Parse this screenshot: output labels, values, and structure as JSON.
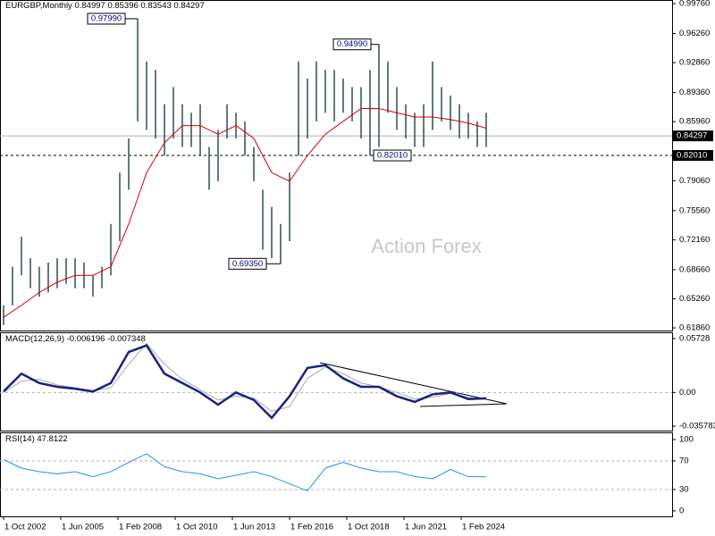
{
  "chart_data": [
    {
      "type": "hilo",
      "title": "EURGBP,Monthly",
      "header_values": [
        0.84997,
        0.85396,
        0.83543,
        0.84297
      ],
      "watermark": "Action Forex",
      "color": "#2f4f4f",
      "xlim": [
        -2,
        374
      ],
      "ylim": [
        0.6155,
        1.0018
      ],
      "yticks": [
        {
          "value": 0.9976,
          "label": "0.99760"
        },
        {
          "value": 0.9626,
          "label": "0.96260"
        },
        {
          "value": 0.9286,
          "label": "0.92860"
        },
        {
          "value": 0.8936,
          "label": "0.89360"
        },
        {
          "value": 0.8596,
          "label": "0.85960"
        },
        {
          "value": 0.7906,
          "label": "0.79060"
        },
        {
          "value": 0.7556,
          "label": "0.75560"
        },
        {
          "value": 0.7216,
          "label": "0.72160"
        },
        {
          "value": 0.6866,
          "label": "0.68660"
        },
        {
          "value": 0.6526,
          "label": "0.65260"
        },
        {
          "value": 0.6186,
          "label": "0.61860"
        }
      ],
      "x": [
        0,
        5,
        10,
        15,
        20,
        25,
        30,
        35,
        40,
        45,
        50,
        55,
        60,
        65,
        70,
        75,
        80,
        85,
        90,
        95,
        100,
        105,
        110,
        115,
        120,
        125,
        130,
        135,
        140,
        145,
        150,
        155,
        160,
        165,
        170,
        175,
        180,
        185,
        190,
        195,
        200,
        205,
        210,
        215,
        220,
        225,
        230,
        235,
        240,
        245,
        250,
        255,
        260,
        265,
        270
      ],
      "high": [
        0.645,
        0.69,
        0.725,
        0.7,
        0.69,
        0.695,
        0.7,
        0.7,
        0.7,
        0.695,
        0.68,
        0.69,
        0.74,
        0.8,
        0.84,
        0.9799,
        0.93,
        0.92,
        0.88,
        0.9,
        0.88,
        0.87,
        0.88,
        0.83,
        0.85,
        0.88,
        0.87,
        0.86,
        0.83,
        0.78,
        0.76,
        0.74,
        0.8,
        0.93,
        0.91,
        0.93,
        0.92,
        0.92,
        0.91,
        0.9,
        0.9,
        0.92,
        0.9499,
        0.93,
        0.9,
        0.88,
        0.87,
        0.88,
        0.93,
        0.9,
        0.89,
        0.88,
        0.87,
        0.86,
        0.87
      ],
      "low": [
        0.622,
        0.645,
        0.68,
        0.665,
        0.655,
        0.66,
        0.665,
        0.67,
        0.665,
        0.665,
        0.655,
        0.665,
        0.68,
        0.72,
        0.78,
        0.86,
        0.85,
        0.84,
        0.82,
        0.84,
        0.83,
        0.83,
        0.82,
        0.78,
        0.79,
        0.84,
        0.84,
        0.82,
        0.79,
        0.71,
        0.7,
        0.6935,
        0.72,
        0.82,
        0.84,
        0.86,
        0.87,
        0.86,
        0.87,
        0.86,
        0.84,
        0.8201,
        0.83,
        0.87,
        0.85,
        0.84,
        0.83,
        0.83,
        0.85,
        0.86,
        0.85,
        0.84,
        0.84,
        0.83,
        0.83
      ],
      "ma": {
        "color": "#d40000",
        "x": [
          0,
          10,
          20,
          30,
          40,
          50,
          60,
          70,
          80,
          90,
          100,
          110,
          120,
          130,
          140,
          150,
          160,
          170,
          180,
          190,
          200,
          210,
          220,
          230,
          240,
          250,
          260,
          270
        ],
        "values": [
          0.631,
          0.645,
          0.66,
          0.672,
          0.68,
          0.68,
          0.69,
          0.74,
          0.8,
          0.835,
          0.855,
          0.855,
          0.845,
          0.855,
          0.84,
          0.8,
          0.79,
          0.82,
          0.845,
          0.86,
          0.875,
          0.875,
          0.87,
          0.865,
          0.865,
          0.862,
          0.858,
          0.852
        ]
      },
      "annotations": [
        {
          "x": 75,
          "value": 0.9799,
          "label": "0.97990"
        },
        {
          "x": 210,
          "value": 0.9499,
          "label": "0.94990"
        },
        {
          "x": 155,
          "value": 0.6935,
          "label": "0.69350"
        },
        {
          "x": 205,
          "value": 0.8201,
          "label": "0.82010"
        }
      ],
      "current": {
        "value": 0.84297,
        "label": "0.84297"
      },
      "level": {
        "value": 0.8201,
        "label": "0.82010"
      }
    },
    {
      "type": "line",
      "title": "MACD(12,26,9)",
      "header_values": [
        -0.006196,
        -0.007348
      ],
      "xlim": [
        -2,
        374
      ],
      "ylim": [
        -0.0405,
        0.0639
      ],
      "yticks": [
        {
          "value": 0.05728,
          "label": "0.05728"
        },
        {
          "value": 0,
          "label": "0.00"
        },
        {
          "value": -0.035783,
          "label": "-0.035783"
        }
      ],
      "x": [
        0,
        10,
        20,
        30,
        40,
        50,
        60,
        70,
        80,
        90,
        100,
        110,
        120,
        130,
        140,
        150,
        160,
        170,
        180,
        190,
        200,
        210,
        220,
        230,
        240,
        250,
        260,
        270
      ],
      "series": [
        {
          "color": "#1a237e",
          "values": [
            0.001,
            0.02,
            0.01,
            0.006,
            0.004,
            0.001,
            0.01,
            0.043,
            0.05,
            0.02,
            0.01,
            0.0,
            -0.013,
            0.0,
            -0.008,
            -0.027,
            -0.004,
            0.026,
            0.029,
            0.015,
            0.006,
            0.006,
            -0.004,
            -0.01,
            -0.002,
            0.0,
            -0.007,
            -0.006196
          ]
        },
        {
          "color": "#a9a9a9",
          "values": [
            0,
            0.012,
            0.014,
            0.008,
            0.005,
            0.002,
            0.005,
            0.03,
            0.052,
            0.03,
            0.014,
            0.003,
            -0.008,
            -0.004,
            -0.006,
            -0.02,
            -0.015,
            0.015,
            0.027,
            0.02,
            0.01,
            0.006,
            0.0,
            -0.007,
            -0.005,
            -0.001,
            -0.005,
            -0.007348
          ]
        }
      ]
    },
    {
      "type": "line",
      "title": "RSI(14)",
      "header_values": [
        47.8122
      ],
      "xlim": [
        -2,
        374
      ],
      "ylim": [
        -7.6,
        110
      ],
      "yticks": [
        100,
        70,
        30,
        0
      ],
      "levels": [
        70,
        30
      ],
      "x": [
        0,
        10,
        20,
        30,
        40,
        50,
        60,
        70,
        80,
        90,
        100,
        110,
        120,
        130,
        140,
        150,
        160,
        170,
        180,
        190,
        200,
        210,
        220,
        230,
        240,
        250,
        260,
        270
      ],
      "series": [
        {
          "color": "#1e90ff",
          "values": [
            72,
            60,
            55,
            52,
            55,
            48,
            55,
            68,
            80,
            62,
            55,
            52,
            45,
            50,
            55,
            48,
            38,
            28,
            60,
            68,
            60,
            55,
            55,
            48,
            45,
            58,
            48,
            47.8122
          ]
        }
      ],
      "xticks": [
        {
          "value": 0,
          "label": "1 Oct 2002"
        },
        {
          "value": 32,
          "label": "1 Jun 2005"
        },
        {
          "value": 64,
          "label": "1 Feb 2008"
        },
        {
          "value": 96,
          "label": "1 Oct 2010"
        },
        {
          "value": 128,
          "label": "1 Jun 2013"
        },
        {
          "value": 160,
          "label": "1 Feb 2016"
        },
        {
          "value": 192,
          "label": "1 Oct 2018"
        },
        {
          "value": 224,
          "label": "1 Jun 2021"
        },
        {
          "value": 256,
          "label": "1 Feb 2024"
        }
      ]
    }
  ]
}
